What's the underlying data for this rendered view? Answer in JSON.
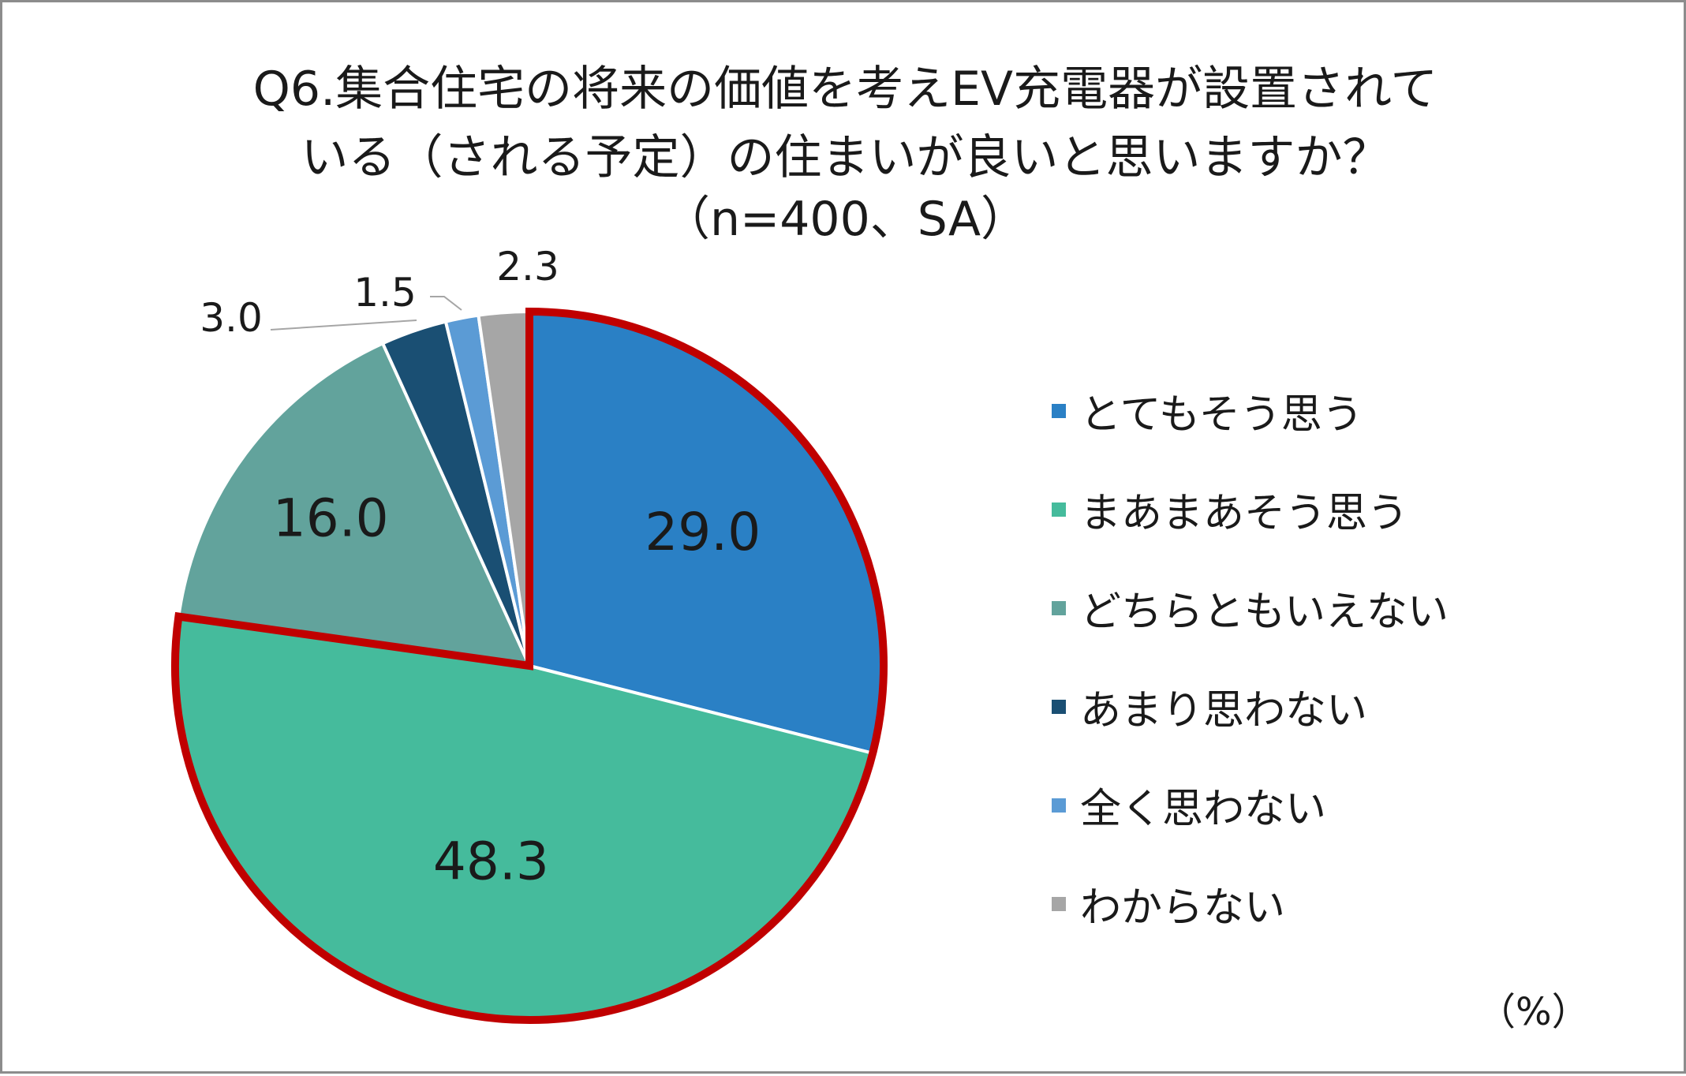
{
  "title": {
    "line1": "Q6.集合住宅の将来の価値を考えEV充電器が設置されて",
    "line2": "いる（される予定）の住まいが良いと思いますか？",
    "line3": "（n=400、SA）"
  },
  "unit": "（%）",
  "chart_data": {
    "type": "pie",
    "title": "Q6.集合住宅の将来の価値を考えEV充電器が設置されているか（される予定）の住まいが良いと思いますか？ （n=400、SA）",
    "categories": [
      "とてもそう思う",
      "まあまあそう思う",
      "どちらともいえない",
      "あまり思わない",
      "全く思わない",
      "わからない"
    ],
    "values": [
      29.0,
      48.3,
      16.0,
      3.0,
      1.5,
      2.3
    ],
    "labels": [
      "29.0",
      "48.3",
      "16.0",
      "3.0",
      "1.5",
      "2.3"
    ],
    "colors": [
      "#2a80c5",
      "#45bb9c",
      "#62a39c",
      "#1a4f73",
      "#5b9bd5",
      "#a6a6a6"
    ],
    "highlight": {
      "indices": [
        0,
        1
      ],
      "outline_color": "#c00000"
    },
    "start_angle_deg": 0,
    "direction": "clockwise",
    "legend_position": "right",
    "unit": "%"
  }
}
